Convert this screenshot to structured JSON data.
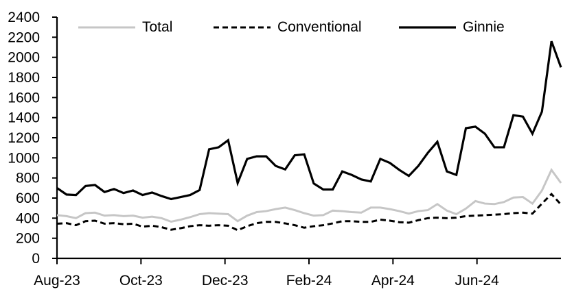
{
  "chart_data": {
    "type": "line",
    "title": "",
    "xlabel": "",
    "ylabel": "",
    "x_unit": "weekly observations",
    "x_range": [
      "Aug-23",
      "Aug-24"
    ],
    "x_tick_labels": [
      "Aug-23",
      "Oct-23",
      "Dec-23",
      "Feb-24",
      "Apr-24",
      "Jun-24"
    ],
    "y_tick_labels": [
      "0",
      "200",
      "400",
      "600",
      "800",
      "1000",
      "1200",
      "1400",
      "1600",
      "1800",
      "2000",
      "2200",
      "2400"
    ],
    "ylim": [
      0,
      2400
    ],
    "y_tick_step": 200,
    "grid": "off",
    "legend_position": "top-inside",
    "axis_color": "#000000",
    "series": [
      {
        "name": "Total",
        "style": "solid",
        "color": "#c6c6c6",
        "stroke_width": 3,
        "values": [
          430,
          420,
          400,
          450,
          455,
          425,
          430,
          420,
          425,
          405,
          415,
          400,
          365,
          385,
          410,
          440,
          450,
          445,
          440,
          370,
          425,
          460,
          470,
          490,
          505,
          480,
          450,
          425,
          430,
          475,
          470,
          460,
          455,
          505,
          505,
          490,
          470,
          445,
          470,
          480,
          540,
          475,
          440,
          495,
          570,
          545,
          540,
          560,
          605,
          610,
          545,
          675,
          880,
          750
        ]
      },
      {
        "name": "Conventional",
        "style": "dashed",
        "color": "#000000",
        "stroke_width": 3,
        "values": [
          345,
          350,
          330,
          370,
          375,
          345,
          350,
          340,
          345,
          315,
          325,
          310,
          285,
          300,
          320,
          330,
          325,
          330,
          325,
          280,
          320,
          350,
          363,
          363,
          348,
          330,
          305,
          320,
          330,
          348,
          370,
          370,
          363,
          363,
          385,
          375,
          360,
          355,
          380,
          400,
          405,
          400,
          405,
          420,
          425,
          430,
          435,
          440,
          450,
          455,
          445,
          545,
          640,
          535
        ]
      },
      {
        "name": "Ginnie",
        "style": "solid",
        "color": "#000000",
        "stroke_width": 3.2,
        "values": [
          700,
          635,
          630,
          720,
          730,
          660,
          690,
          650,
          675,
          630,
          655,
          620,
          590,
          610,
          630,
          680,
          1085,
          1105,
          1175,
          750,
          990,
          1015,
          1015,
          920,
          885,
          1025,
          1035,
          745,
          685,
          685,
          865,
          830,
          785,
          765,
          990,
          950,
          880,
          820,
          920,
          1050,
          1160,
          865,
          830,
          1295,
          1310,
          1240,
          1105,
          1105,
          1425,
          1410,
          1240,
          1460,
          2160,
          1900
        ]
      }
    ]
  }
}
